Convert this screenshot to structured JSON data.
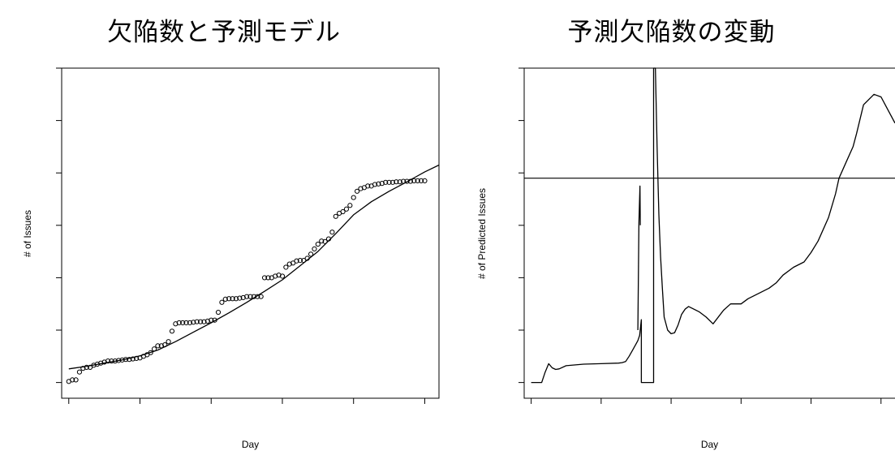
{
  "chart_data": [
    {
      "type": "scatter",
      "title": "欠陥数と予測モデル",
      "xlabel": "Day",
      "ylabel": "# of Issues",
      "xlim": [
        -2,
        104
      ],
      "ylim": [
        -0.3,
        6.0
      ],
      "tick_labels_shown": false,
      "grid": false,
      "series": [
        {
          "kind": "points",
          "x": [
            0,
            1,
            2,
            3,
            4,
            5,
            6,
            7,
            8,
            9,
            10,
            11,
            12,
            13,
            14,
            15,
            16,
            17,
            18,
            19,
            20,
            21,
            22,
            23,
            24,
            25,
            26,
            27,
            28,
            29,
            30,
            31,
            32,
            33,
            34,
            35,
            36,
            37,
            38,
            39,
            40,
            41,
            42,
            43,
            44,
            45,
            46,
            47,
            48,
            49,
            50,
            51,
            52,
            53,
            54,
            55,
            56,
            57,
            58,
            59,
            60,
            61,
            62,
            63,
            64,
            65,
            66,
            67,
            68,
            69,
            70,
            71,
            72,
            73,
            74,
            75,
            76,
            77,
            78,
            79,
            80,
            81,
            82,
            83,
            84,
            85,
            86,
            87,
            88,
            89,
            90,
            91,
            92,
            93,
            94,
            95,
            96,
            97,
            98,
            99,
            100
          ],
          "y": [
            0.02,
            0.05,
            0.05,
            0.2,
            0.27,
            0.29,
            0.29,
            0.33,
            0.35,
            0.37,
            0.39,
            0.41,
            0.41,
            0.41,
            0.42,
            0.43,
            0.44,
            0.44,
            0.45,
            0.46,
            0.47,
            0.5,
            0.53,
            0.57,
            0.64,
            0.7,
            0.7,
            0.72,
            0.78,
            0.98,
            1.12,
            1.14,
            1.14,
            1.14,
            1.14,
            1.15,
            1.16,
            1.16,
            1.16,
            1.17,
            1.19,
            1.19,
            1.34,
            1.53,
            1.59,
            1.6,
            1.6,
            1.6,
            1.61,
            1.62,
            1.64,
            1.64,
            1.64,
            1.64,
            1.64,
            2.0,
            2.0,
            2.0,
            2.03,
            2.05,
            2.03,
            2.2,
            2.26,
            2.28,
            2.32,
            2.33,
            2.33,
            2.37,
            2.45,
            2.55,
            2.64,
            2.7,
            2.69,
            2.74,
            2.87,
            3.17,
            3.23,
            3.26,
            3.31,
            3.38,
            3.53,
            3.65,
            3.7,
            3.72,
            3.75,
            3.75,
            3.78,
            3.79,
            3.8,
            3.82,
            3.82,
            3.82,
            3.83,
            3.83,
            3.84,
            3.84,
            3.84,
            3.85,
            3.85,
            3.85,
            3.85
          ]
        },
        {
          "kind": "line",
          "x": [
            0,
            5,
            10,
            15,
            20,
            25,
            30,
            35,
            40,
            45,
            50,
            55,
            60,
            65,
            70,
            75,
            80,
            85,
            90,
            95,
            100,
            104
          ],
          "y": [
            0.26,
            0.31,
            0.37,
            0.43,
            0.51,
            0.62,
            0.78,
            0.96,
            1.14,
            1.33,
            1.53,
            1.74,
            1.96,
            2.23,
            2.5,
            2.84,
            3.2,
            3.45,
            3.65,
            3.83,
            4.02,
            4.15
          ]
        }
      ]
    },
    {
      "type": "line",
      "title": "予測欠陥数の変動",
      "xlabel": "Day",
      "ylabel": "# of Predicted Issues",
      "xlim": [
        -2,
        104
      ],
      "ylim": [
        -0.3,
        6.0
      ],
      "tick_labels_shown": false,
      "grid": false,
      "hline": 3.9,
      "series": [
        {
          "kind": "line",
          "x": [
            0,
            3,
            4,
            5,
            6,
            7,
            8,
            10,
            15,
            20,
            25,
            26,
            27,
            28,
            29,
            30,
            30.5,
            31,
            31.5,
            31.5,
            35,
            35,
            35.5,
            36,
            36.5,
            37,
            37.5,
            38,
            39,
            40,
            41,
            42,
            43,
            44,
            45,
            48,
            50,
            52,
            55,
            57,
            60,
            62,
            65,
            68,
            70,
            72,
            75,
            78,
            80,
            82,
            85,
            87,
            88,
            90,
            92,
            93,
            95,
            98,
            100,
            102,
            104
          ],
          "y": [
            0,
            0,
            0.2,
            0.36,
            0.28,
            0.25,
            0.26,
            0.32,
            0.35,
            0.36,
            0.37,
            0.38,
            0.4,
            0.5,
            0.62,
            0.74,
            0.8,
            0.9,
            1.2,
            0,
            0,
            6.0,
            6.0,
            4.5,
            3.2,
            2.4,
            1.8,
            1.25,
            1.0,
            0.93,
            0.95,
            1.1,
            1.3,
            1.4,
            1.45,
            1.35,
            1.25,
            1.12,
            1.38,
            1.5,
            1.5,
            1.6,
            1.7,
            1.8,
            1.9,
            2.05,
            2.2,
            2.3,
            2.48,
            2.7,
            3.15,
            3.6,
            3.9,
            4.2,
            4.5,
            4.75,
            5.3,
            5.5,
            5.45,
            5.2,
            4.95
          ]
        },
        {
          "kind": "line",
          "x": [
            30.5,
            30.8,
            31.1,
            31.2
          ],
          "y": [
            1.0,
            3.05,
            3.75,
            3.0
          ]
        }
      ]
    }
  ]
}
